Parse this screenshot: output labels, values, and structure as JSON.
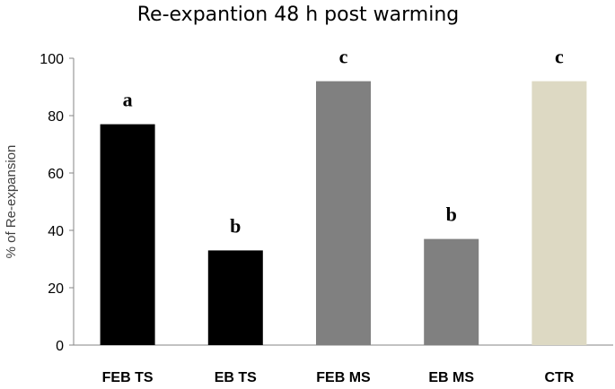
{
  "chart_data": {
    "type": "bar",
    "title": "Re-expantion 48 h post warming",
    "ylabel": "% of Re-expansion",
    "xlabel": "",
    "ylim": [
      0,
      100
    ],
    "yticks": [
      0,
      20,
      40,
      60,
      80,
      100
    ],
    "categories": [
      "FEB TS",
      "EB TS",
      "FEB MS",
      "EB MS",
      "CTR"
    ],
    "values": [
      77,
      33,
      92,
      37,
      92
    ],
    "annotations": [
      "a",
      "b",
      "c",
      "b",
      "c"
    ],
    "bar_colors": [
      "#000000",
      "#000000",
      "#808080",
      "#808080",
      "#DDD9C3"
    ],
    "grid": false,
    "legend": "none"
  }
}
